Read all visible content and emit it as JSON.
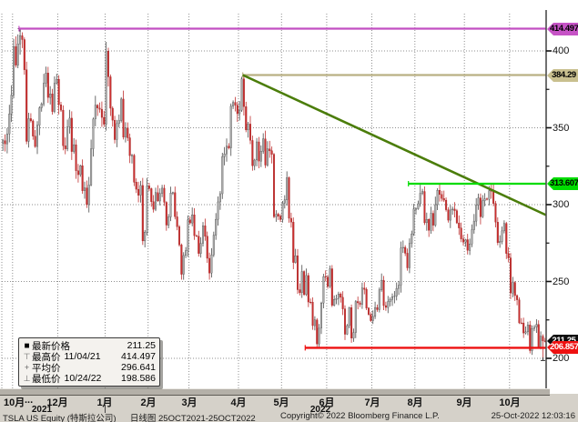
{
  "footer": {
    "security_line": "TSLA US Equity (特斯拉公司)",
    "period_line": "日线图 25OCT2021-25OCT2022",
    "copyright": "Copyright© 2022 Bloomberg Finance L.P.",
    "timestamp": "25-Oct-2022 12:03:16"
  },
  "legend": {
    "rows": [
      {
        "symbol": "square",
        "label": "最新价格",
        "date": "",
        "value": "211.25"
      },
      {
        "symbol": "top-marker",
        "label": "最高价",
        "date": "11/04/21",
        "value": "414.497"
      },
      {
        "symbol": "plus-marker",
        "label": "平均价",
        "date": "",
        "value": "296.641"
      },
      {
        "symbol": "bottom-marker",
        "label": "最低价",
        "date": "10/24/22",
        "value": "198.586"
      }
    ]
  },
  "x_axis": {
    "first_month_label": "10月",
    "ellipsis": "...",
    "month_labels": [
      "12月",
      "1月",
      "2月",
      "3月",
      "4月",
      "5月",
      "6月",
      "7月",
      "8月",
      "9月",
      "10月"
    ],
    "years": [
      {
        "label": "2021"
      },
      {
        "label": "2022"
      }
    ]
  },
  "y_axis": {
    "major_ticks": [
      400,
      350,
      300,
      250,
      200
    ],
    "minor_ticks": [
      375,
      325,
      275,
      225
    ]
  },
  "axis_tags": [
    {
      "value": "414.497",
      "bg": "#c653c6",
      "fg": "#000000"
    },
    {
      "value": "384.29",
      "bg": "#c9c08f",
      "fg": "#000000"
    },
    {
      "value": "313.607",
      "bg": "#00dc00",
      "fg": "#000000"
    },
    {
      "value": "211.25",
      "bg": "#0d0d0d",
      "fg": "#ffffff"
    },
    {
      "value": "206.857",
      "bg": "#ee1111",
      "fg": "#ffffff"
    }
  ],
  "chart_data": {
    "type": "candlestick",
    "security": "TSLA US Equity",
    "period": "daily 25OCT2021-25OCT2022",
    "ylim": [
      190,
      424
    ],
    "grid": true,
    "stats": {
      "last_price": 211.25,
      "high": {
        "date": "11/04/21",
        "value": 414.497
      },
      "mean": 296.641,
      "low": {
        "date": "10/24/22",
        "value": 198.586
      }
    },
    "months_trading_days": [
      5,
      21,
      22,
      20,
      19,
      23,
      20,
      21,
      21,
      20,
      23,
      21,
      17
    ],
    "closes": [
      341.6,
      339.5,
      346.0,
      359.0,
      371.3,
      402.9,
      390.7,
      404.6,
      410.0,
      407.4,
      387.7,
      341.2,
      356.0,
      354.5,
      344.5,
      337.8,
      351.6,
      363.0,
      365.5,
      379.0,
      385.6,
      369.7,
      372.0,
      360.6,
      379.0,
      381.6,
      365.0,
      361.5,
      338.3,
      336.3,
      350.6,
      356.3,
      334.6,
      339.0,
      322.1,
      319.5,
      325.3,
      309.0,
      310.9,
      300.0,
      312.8,
      336.3,
      355.7,
      364.6,
      362.8,
      362.1,
      356.8,
      352.3,
      399.9,
      383.2,
      362.7,
      354.9,
      342.3,
      352.7,
      354.8,
      368.7,
      343.9,
      349.9,
      343.5,
      331.9,
      332.1,
      314.6,
      310.0,
      306.1,
      312.5,
      276.4,
      282.1,
      312.2,
      310.4,
      301.9,
      297.0,
      307.8,
      302.4,
      307.3,
      310.7,
      301.5,
      286.7,
      292.0,
      307.5,
      307.8,
      292.1,
      285.7,
      273.8,
      254.7,
      266.9,
      270.0,
      290.1,
      288.1,
      293.3,
      279.8,
      279.4,
      268.2,
      274.8,
      286.3,
      279.4,
      265.1,
      255.5,
      267.3,
      280.1,
      290.5,
      301.8,
      307.1,
      331.3,
      333.0,
      338.0,
      336.9,
      364.0,
      366.5,
      364.7,
      359.2,
      361.5,
      381.8,
      363.8,
      348.6,
      352.4,
      341.8,
      325.3,
      329.0,
      340.8,
      328.3,
      334.8,
      342.7,
      325.7,
      336.3,
      335.0,
      332.7,
      292.1,
      293.8,
      292.5,
      290.3,
      301.0,
      303.1,
      317.5,
      291.1,
      288.6,
      262.4,
      266.7,
      244.7,
      242.7,
      256.5,
      241.5,
      253.9,
      236.6,
      236.5,
      221.3,
      225.0,
      209.4,
      219.6,
      235.9,
      253.2,
      252.8,
      246.8,
      258.3,
      234.5,
      238.3,
      238.9,
      241.9,
      239.7,
      232.2,
      215.7,
      221.3,
      233.0,
      213.1,
      216.8,
      237.0,
      236.1,
      235.1,
      245.7,
      244.9,
      232.7,
      228.5,
      224.5,
      227.3,
      233.1,
      231.7,
      244.5,
      250.8,
      234.3,
      233.1,
      237.0,
      238.3,
      240.1,
      240.5,
      245.5,
      247.5,
      271.7,
      272.2,
      268.4,
      258.9,
      274.8,
      280.9,
      297.2,
      297.3,
      300.6,
      307.4,
      308.6,
      288.2,
      290.4,
      283.3,
      294.4,
      286.6,
      300.0,
      309.3,
      306.6,
      304.0,
      302.9,
      296.7,
      289.9,
      296.5,
      297.1,
      296.1,
      288.1,
      284.8,
      277.7,
      275.6,
      277.2,
      270.2,
      274.4,
      283.7,
      289.3,
      299.7,
      304.4,
      292.1,
      302.6,
      303.8,
      303.4,
      309.1,
      308.7,
      300.8,
      288.6,
      275.3,
      276.0,
      282.9,
      287.8,
      268.2,
      265.3,
      242.4,
      249.4,
      240.8,
      238.1,
      223.1,
      223.0,
      216.5,
      217.2,
      221.7,
      205.0,
      219.4,
      220.2,
      222.0,
      207.3,
      214.4,
      211.3,
      211.25
    ],
    "overrides": [
      {
        "index": 8,
        "high": 414.497
      },
      {
        "index": 112,
        "high": 384.29
      },
      {
        "index": 146,
        "low": 206.857
      },
      {
        "index": 203,
        "high": 313.607
      },
      {
        "index": 228,
        "high": 313.2
      },
      {
        "index": 251,
        "low": 198.586
      }
    ],
    "annotation_lines": [
      {
        "name": "high-line",
        "kind": "horizontal",
        "value": 414.497,
        "from_day": 8,
        "color": "#c24fc2",
        "width": 2.2
      },
      {
        "name": "april-peak-line",
        "kind": "horizontal",
        "value": 384.29,
        "from_day": 112,
        "color": "#b9b083",
        "width": 2.2
      },
      {
        "name": "downtrend-line",
        "kind": "trend",
        "from": {
          "day": 112,
          "value": 384.29
        },
        "to": {
          "day": 253,
          "value": 293.2
        },
        "color": "#4b7d0a",
        "width": 2.6
      },
      {
        "name": "resistance-line",
        "kind": "horizontal",
        "value": 313.607,
        "from_day": 189,
        "color": "#00dc00",
        "width": 2.2
      },
      {
        "name": "support-line",
        "kind": "horizontal",
        "value": 206.857,
        "from_day": 141,
        "color": "#ee1111",
        "width": 2.4
      }
    ],
    "colors": {
      "up_body": "#ababab",
      "up_stroke": "#3c3c3c",
      "up_wick": "#4a4a4a",
      "down_body": "#cc2e2e",
      "down_stroke": "#8f1d1d",
      "down_wick": "#c03030",
      "grid": "#8f8f8f",
      "axis": "#4d4d4d"
    }
  }
}
